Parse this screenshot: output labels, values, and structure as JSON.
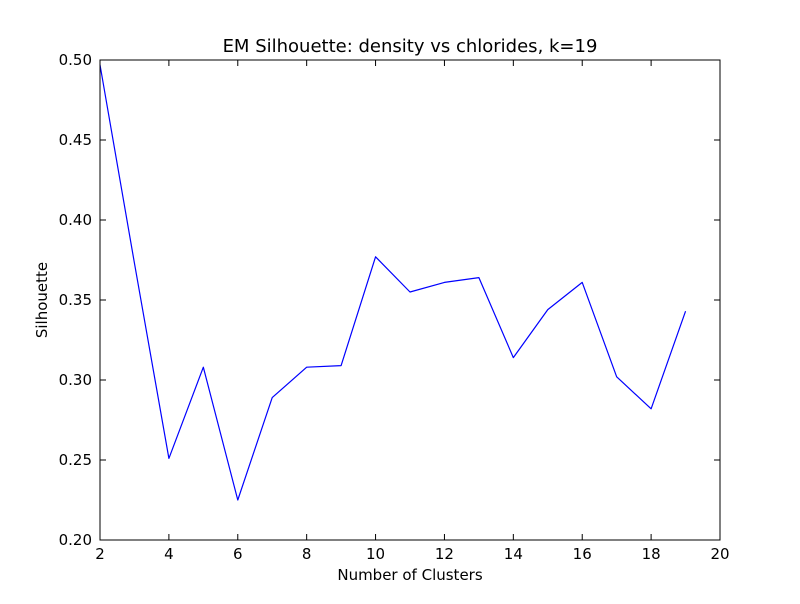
{
  "chart_data": {
    "type": "line",
    "title": "EM Silhouette: density vs chlorides, k=19",
    "xlabel": "Number of Clusters",
    "ylabel": "Silhouette",
    "xlim": [
      2,
      20
    ],
    "ylim": [
      0.2,
      0.5
    ],
    "xticks": [
      2,
      4,
      6,
      8,
      10,
      12,
      14,
      16,
      18,
      20
    ],
    "xtick_labels": [
      "2",
      "4",
      "6",
      "8",
      "10",
      "12",
      "14",
      "16",
      "18",
      "20"
    ],
    "yticks": [
      0.2,
      0.25,
      0.3,
      0.35,
      0.4,
      0.45,
      0.5
    ],
    "ytick_labels": [
      "0.20",
      "0.25",
      "0.30",
      "0.35",
      "0.40",
      "0.45",
      "0.50"
    ],
    "grid": false,
    "line_color": "#0000ff",
    "series": [
      {
        "x": [
          2,
          3,
          4,
          5,
          6,
          7,
          8,
          9,
          10,
          11,
          12,
          13,
          14,
          15,
          16,
          17,
          18,
          19
        ],
        "values": [
          0.497,
          0.373,
          0.251,
          0.308,
          0.225,
          0.289,
          0.308,
          0.309,
          0.377,
          0.355,
          0.361,
          0.364,
          0.314,
          0.344,
          0.361,
          0.302,
          0.282,
          0.343
        ]
      }
    ]
  }
}
